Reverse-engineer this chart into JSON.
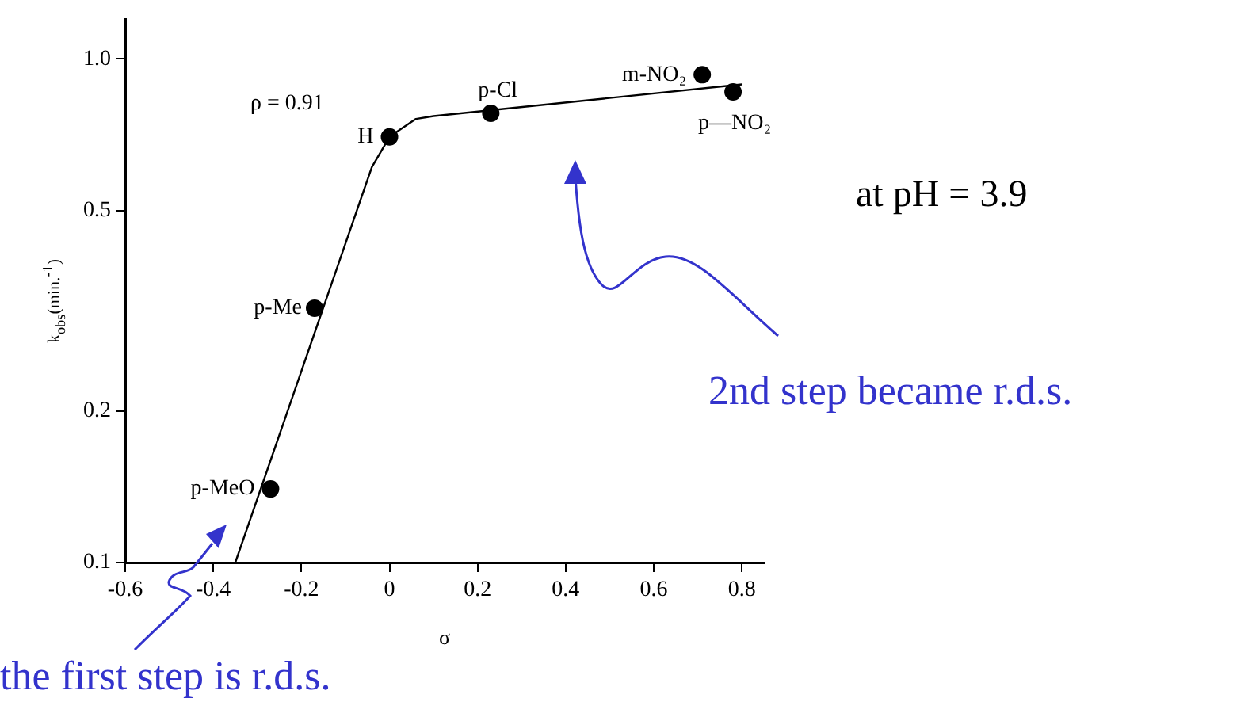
{
  "chart_data": {
    "type": "scatter",
    "xlabel": "σ",
    "ylabel": "k$_{obs}$(min.$^{-1}$)",
    "log": "y",
    "grid": false,
    "legend": false,
    "marker": "circle",
    "xlim": [
      -0.6,
      0.85
    ],
    "xticks": [
      -0.6,
      -0.4,
      -0.2,
      0,
      0.2,
      0.4,
      0.6,
      0.8
    ],
    "ylim": [
      0.1,
      1.2
    ],
    "yticks": [
      {
        "value": 1,
        "label": "1.0"
      },
      0.5,
      0.2,
      0.1
    ],
    "series": [
      {
        "color": "#000000",
        "x": [
          -0.27,
          -0.17,
          0,
          0.23,
          0.71,
          0.78
        ],
        "values": [
          0.14,
          0.32,
          0.7,
          0.78,
          0.93,
          0.86
        ]
      },
      {
        "type": "line",
        "color": "#000000",
        "marker": "none",
        "x": [
          -0.35,
          -0.04,
          0,
          0.03,
          0.06,
          0.1,
          0.8
        ],
        "values": [
          0.1,
          0.61,
          0.7,
          0.73,
          0.76,
          0.77,
          0.89
        ]
      }
    ],
    "annotations": [
      {
        "text": "p-MeO",
        "x": -0.27,
        "y": 0.14
      },
      {
        "text": "p-Me",
        "x": -0.17,
        "y": 0.32
      },
      {
        "text": "H",
        "x": 0,
        "y": 0.7
      },
      {
        "text": "p-Cl",
        "x": 0.23,
        "y": 0.78
      },
      {
        "text": "m-NO₂",
        "x": 0.71,
        "y": 0.93
      },
      {
        "text": "p—NO₂",
        "x": 0.78,
        "y": 0.86
      },
      "ρ = 0.91",
      "at pH = 3.9",
      "2nd step became r.d.s.",
      "the first step is r.d.s."
    ]
  }
}
